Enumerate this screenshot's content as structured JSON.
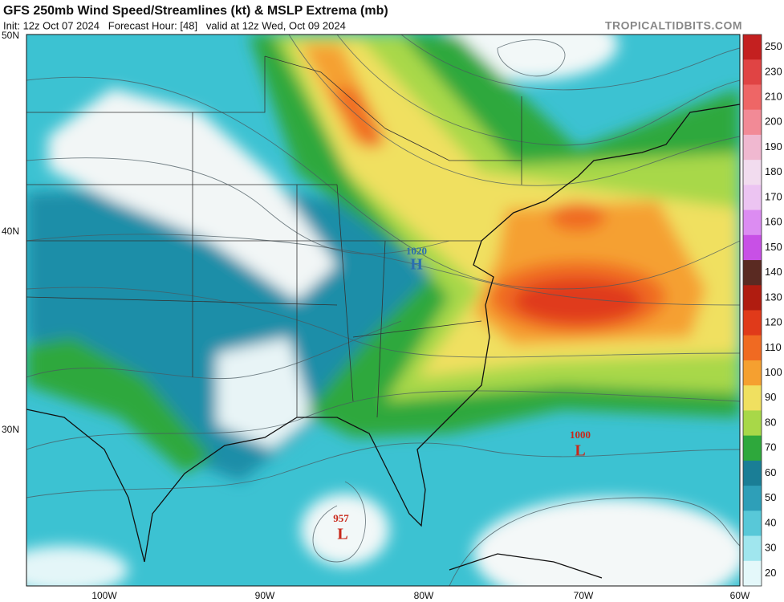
{
  "header": {
    "title": "GFS 250mb Wind Speed/Streamlines (kt) & MSLP Extrema (mb)",
    "subtitle": "Init: 12z Oct 07 2024   Forecast Hour: [48]   valid at 12z Wed, Oct 09 2024",
    "site": "TROPICALTIDBITS.COM"
  },
  "map": {
    "lat_labels": [
      "50N",
      "40N",
      "30N"
    ],
    "lon_labels": [
      "100W",
      "90W",
      "80W",
      "70W",
      "60W"
    ],
    "pressure_centers": [
      {
        "value": "1020",
        "symbol": "H"
      },
      {
        "value": "1000",
        "symbol": "L"
      },
      {
        "value": "957",
        "symbol": "L"
      }
    ]
  },
  "colorbar": {
    "labels": [
      250,
      230,
      210,
      200,
      190,
      180,
      170,
      160,
      150,
      140,
      130,
      120,
      110,
      100,
      90,
      80,
      70,
      60,
      50,
      40,
      30,
      20
    ],
    "colors": [
      "#c42020",
      "#e04444",
      "#ee6666",
      "#f28a96",
      "#f0b8d0",
      "#f2dcef",
      "#ecc4f2",
      "#dc8cf2",
      "#c850e6",
      "#5a2a22",
      "#b01c10",
      "#e03a1a",
      "#f06a22",
      "#f5a030",
      "#f0e060",
      "#a8d848",
      "#2ea83c",
      "#1a7e96",
      "#2e9fb8",
      "#58c8d8",
      "#a0e6ee",
      "#e4f8fa"
    ]
  }
}
